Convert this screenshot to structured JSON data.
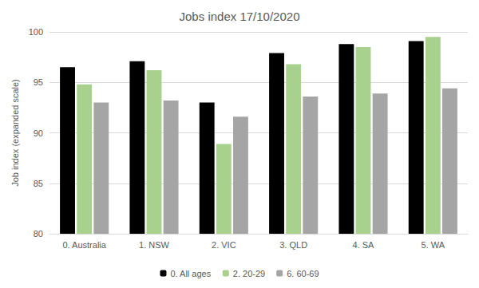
{
  "chart_data": {
    "type": "bar",
    "title": "Jobs index 17/10/2020",
    "y_label": "Job index (expanded scale)",
    "categories": [
      "0. Australia",
      "1. NSW",
      "2. VIC",
      "3. QLD",
      "4. SA",
      "5. WA"
    ],
    "series": [
      {
        "name": "0. All ages",
        "color": "#000000",
        "values": [
          96.5,
          97.1,
          93.0,
          97.9,
          98.8,
          99.1
        ]
      },
      {
        "name": "2. 20-29",
        "color": "#a9d18e",
        "values": [
          94.8,
          96.2,
          88.9,
          96.8,
          98.5,
          99.5
        ]
      },
      {
        "name": "6. 60-69",
        "color": "#a5a5a5",
        "values": [
          93.0,
          93.2,
          91.6,
          93.6,
          93.9,
          94.4
        ]
      }
    ],
    "ylim": [
      80,
      100
    ],
    "yticks": [
      80,
      85,
      90,
      95,
      100
    ],
    "grid": true,
    "legend": "bottom"
  }
}
